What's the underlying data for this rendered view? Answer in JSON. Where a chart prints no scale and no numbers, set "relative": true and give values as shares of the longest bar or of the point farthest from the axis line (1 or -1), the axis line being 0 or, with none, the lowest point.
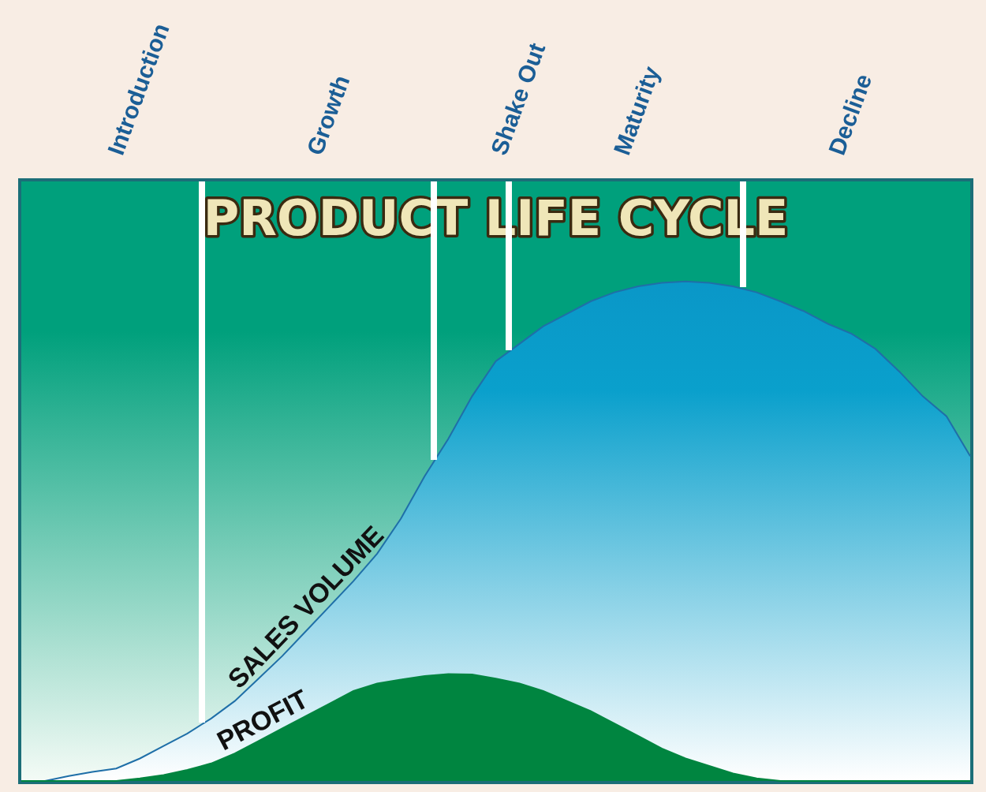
{
  "chart_data": {
    "type": "area",
    "title": "PRODUCT LIFE CYCLE",
    "relative": true,
    "legend": false,
    "categories": [
      null,
      null,
      null,
      null,
      null,
      "Introduction",
      null,
      null,
      null,
      null,
      null,
      null,
      null,
      "Growth",
      null,
      null,
      null,
      null,
      null,
      null,
      null,
      "Shake Out",
      null,
      null,
      null,
      null,
      "Maturity",
      null,
      null,
      null,
      null,
      null,
      null,
      null,
      null,
      "Decline",
      null,
      null,
      null,
      null,
      null
    ],
    "series": [
      {
        "name": "SALES VOLUME",
        "color": "#1f6fa8",
        "values": [
          0,
          0,
          0.01,
          0.018,
          0.025,
          0.045,
          0.07,
          0.095,
          0.125,
          0.16,
          0.205,
          0.25,
          0.3,
          0.35,
          0.4,
          0.455,
          0.525,
          0.61,
          0.685,
          0.77,
          0.84,
          0.875,
          0.91,
          0.935,
          0.96,
          0.978,
          0.99,
          0.997,
          1,
          0.997,
          0.99,
          0.978,
          0.96,
          0.94,
          0.915,
          0.895,
          0.865,
          0.82,
          0.77,
          0.73,
          0.65
        ]
      },
      {
        "name": "PROFIT",
        "color": "#008540",
        "values": [
          0,
          0,
          0,
          0,
          0,
          0.005,
          0.012,
          0.022,
          0.035,
          0.055,
          0.08,
          0.105,
          0.13,
          0.155,
          0.18,
          0.195,
          0.203,
          0.21,
          0.214,
          0.213,
          0.205,
          0.195,
          0.18,
          0.16,
          0.14,
          0.115,
          0.09,
          0.065,
          0.045,
          0.03,
          0.015,
          0.005,
          0,
          0,
          0,
          0,
          0,
          0,
          0,
          0,
          0
        ]
      }
    ]
  }
}
